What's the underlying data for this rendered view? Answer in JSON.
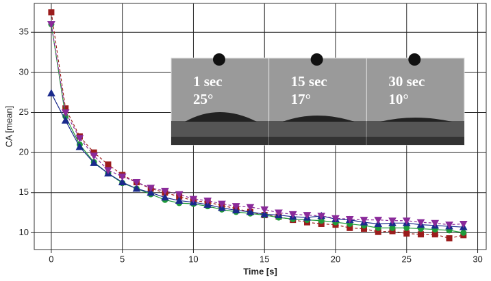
{
  "chart_data": {
    "type": "line",
    "x_label": "Time [s]",
    "y_label": "CA [mean]",
    "x": [
      0,
      1,
      2,
      3,
      4,
      5,
      6,
      7,
      8,
      9,
      10,
      11,
      12,
      13,
      14,
      15,
      16,
      17,
      18,
      19,
      20,
      21,
      22,
      23,
      24,
      25,
      26,
      27,
      28,
      29
    ],
    "series": [
      {
        "color": "#9b1c1c",
        "marker": "square",
        "dashed": true,
        "values": [
          37.5,
          25.5,
          22,
          20,
          18.5,
          17.2,
          16.3,
          15.5,
          15,
          14.5,
          14.0,
          13.8,
          13.4,
          13.0,
          12.6,
          12.2,
          12.0,
          11.6,
          11.3,
          11.1,
          11.0,
          10.6,
          10.5,
          10.1,
          10.2,
          9.9,
          9.8,
          9.8,
          9.3,
          9.7
        ]
      },
      {
        "color": "#1f9a3a",
        "marker": "circle",
        "dashed": false,
        "values": [
          36,
          24.5,
          21,
          18.8,
          17.4,
          16.2,
          15.5,
          14.8,
          14.1,
          13.7,
          13.6,
          13.3,
          12.9,
          12.6,
          12.4,
          12.2,
          11.9,
          11.7,
          11.6,
          11.5,
          11.3,
          11.1,
          10.9,
          10.6,
          10.6,
          10.6,
          10.5,
          10.4,
          10.3,
          10.0
        ]
      },
      {
        "color": "#1a2a8c",
        "marker": "triangle",
        "dashed": false,
        "values": [
          27.4,
          24,
          20.7,
          18.7,
          17.4,
          16.3,
          15.5,
          15,
          14.4,
          14.0,
          13.8,
          13.5,
          13.1,
          12.8,
          12.6,
          12.3,
          12.2,
          12.0,
          11.9,
          12.1,
          11.7,
          11.6,
          11.3,
          11.1,
          11.2,
          11.2,
          11.0,
          10.9,
          10.8,
          10.7
        ]
      },
      {
        "color": "#8a2a9a",
        "marker": "triangle-down",
        "dashed": true,
        "values": [
          36,
          25,
          21.8,
          19.6,
          17.8,
          17.0,
          16.3,
          15.6,
          15.2,
          14.8,
          14.2,
          14.0,
          13.6,
          13.3,
          13.2,
          12.9,
          12.5,
          12.3,
          12.2,
          12.1,
          11.8,
          11.7,
          11.6,
          11.6,
          11.5,
          11.5,
          11.3,
          11.2,
          11.0,
          11.1
        ]
      }
    ],
    "xlim": [
      -1.2,
      30.6
    ],
    "ylim": [
      7.9,
      38.6
    ],
    "xticks": [
      0,
      5,
      10,
      15,
      20,
      25,
      30
    ],
    "yticks": [
      10,
      15,
      20,
      25,
      30,
      35
    ],
    "grid": true
  },
  "inset": {
    "panels": [
      {
        "time": "1 sec",
        "angle": "25°"
      },
      {
        "time": "15 sec",
        "angle": "17°"
      },
      {
        "time": "30 sec",
        "angle": "10°"
      }
    ]
  }
}
